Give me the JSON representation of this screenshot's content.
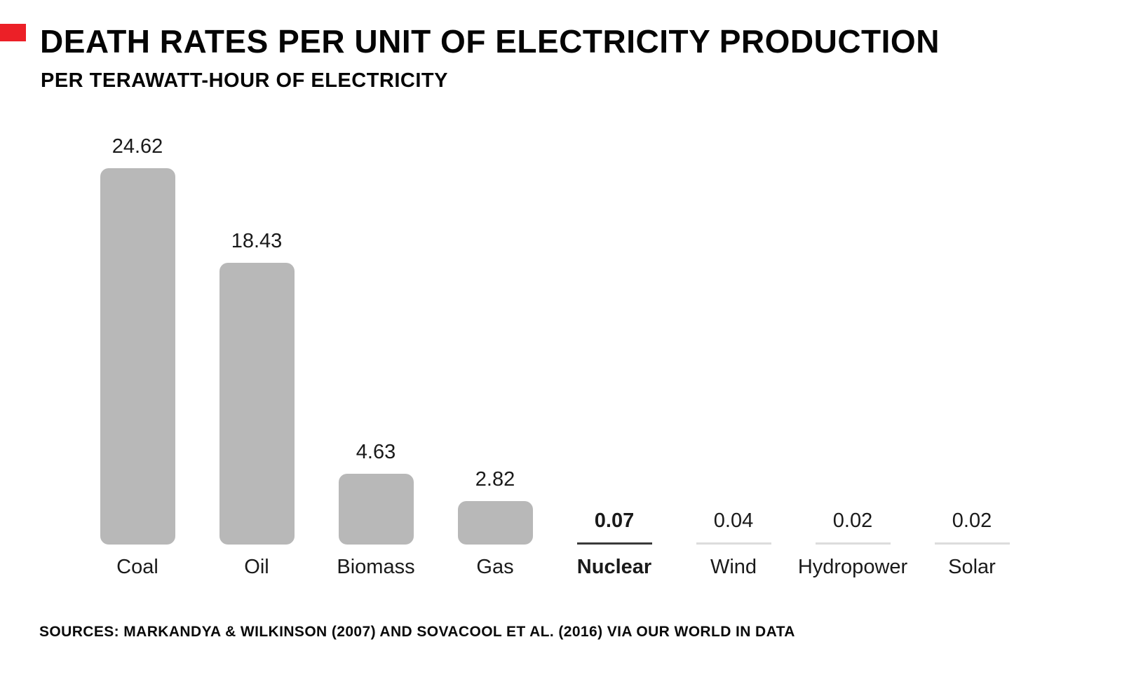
{
  "header": {
    "title": "DEATH RATES PER UNIT OF ELECTRICITY PRODUCTION",
    "subtitle": "PER TERAWATT-HOUR OF ELECTRICITY"
  },
  "chart_data": {
    "type": "bar",
    "title": "DEATH RATES PER UNIT OF ELECTRICITY PRODUCTION",
    "subtitle": "PER TERAWATT-HOUR OF ELECTRICITY",
    "categories": [
      "Coal",
      "Oil",
      "Biomass",
      "Gas",
      "Nuclear",
      "Wind",
      "Hydropower",
      "Solar"
    ],
    "values": [
      24.62,
      18.43,
      4.63,
      2.82,
      0.07,
      0.04,
      0.02,
      0.02
    ],
    "value_labels": [
      "24.62",
      "18.43",
      "4.63",
      "2.82",
      "0.07",
      "0.04",
      "0.02",
      "0.02"
    ],
    "xlabel": "",
    "ylabel": "",
    "ylim": [
      0,
      25
    ],
    "grid": false,
    "legend": false,
    "orientation": "vertical",
    "emphasized_category": "Nuclear",
    "colors": {
      "bar": "#b8b8b8",
      "tiny_bar_line": "#dcdcdc",
      "emphasized_line": "#3a3a3a",
      "text": "#1a1a1a",
      "title_text": "#050505"
    }
  },
  "decorations": {
    "red_marker_color": "#ec2027"
  },
  "footer": {
    "sources": "SOURCES: MARKANDYA & WILKINSON (2007) AND SOVACOOL ET AL. (2016) VIA OUR WORLD IN DATA"
  }
}
